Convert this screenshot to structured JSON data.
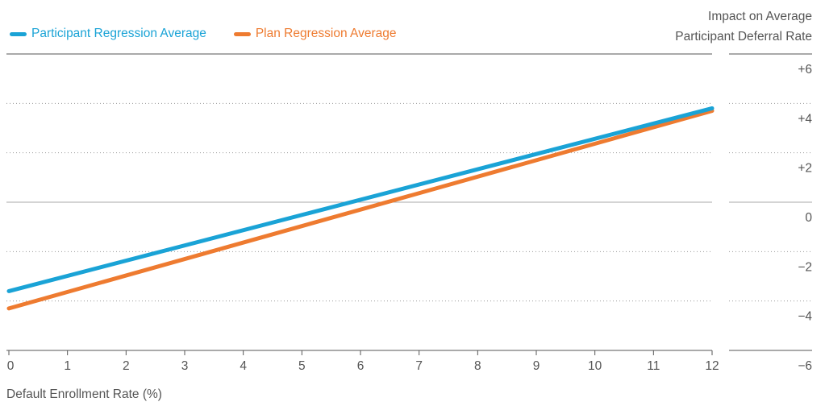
{
  "chart_data": {
    "type": "line",
    "xlabel": "Default Enrollment Rate (%)",
    "ylabel_lines": [
      "Impact on Average",
      "Participant Deferral Rate"
    ],
    "x": [
      0,
      12
    ],
    "xticks": [
      "0",
      "1",
      "2",
      "3",
      "4",
      "5",
      "6",
      "7",
      "8",
      "9",
      "10",
      "11",
      "12"
    ],
    "yticks": [
      "+6",
      "+4",
      "+2",
      "0",
      "−2",
      "−4",
      "−6"
    ],
    "ytick_values": [
      6,
      4,
      2,
      0,
      -2,
      -4,
      -6
    ],
    "xlim": [
      0,
      12
    ],
    "ylim": [
      -6,
      6
    ],
    "series": [
      {
        "name": "Participant Regression Average",
        "color": "#1aa3d6",
        "values": [
          -3.6,
          3.8
        ]
      },
      {
        "name": "Plan Regression Average",
        "color": "#ee7b30",
        "values": [
          -4.3,
          3.7
        ]
      }
    ],
    "legend": "top-left",
    "grid": "dotted horizontal"
  }
}
